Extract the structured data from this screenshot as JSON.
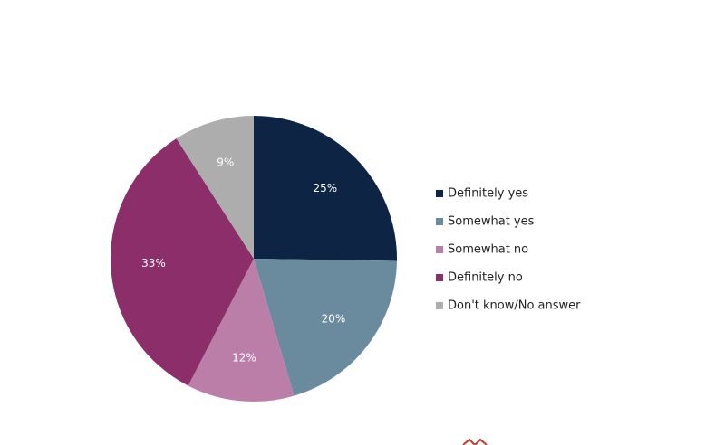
{
  "chart_data": {
    "type": "pie",
    "categories": [
      "Definitely yes",
      "Somewhat yes",
      "Somewhat no",
      "Definitely no",
      "Don't know/No answer"
    ],
    "values": [
      25,
      20,
      12,
      33,
      9
    ],
    "labels": [
      "25%",
      "20%",
      "12%",
      "33%",
      "9%"
    ],
    "colors": [
      "#0e2445",
      "#6a8b9e",
      "#bb7ea8",
      "#8b2e6a",
      "#adadad"
    ],
    "start_angle": "12 o'clock",
    "direction": "clockwise",
    "legend_position": "right"
  },
  "logo": {
    "name": "brand-logo-icon",
    "color": "#c0392b"
  }
}
